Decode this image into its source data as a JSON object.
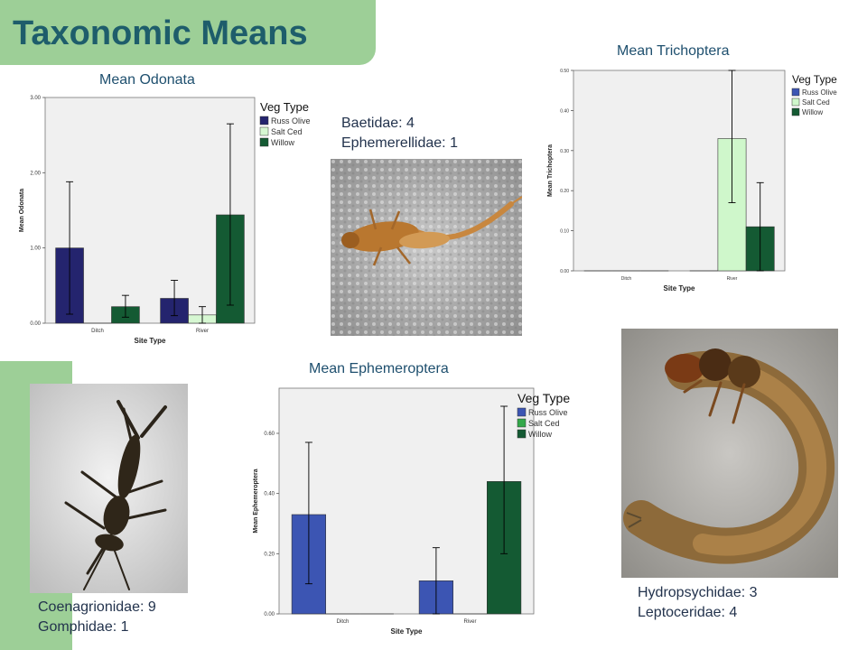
{
  "slide": {
    "title": "Taxonomic Means",
    "colors": {
      "accent_green": "#9dcf97",
      "title_color": "#1e5d6b"
    }
  },
  "captions": {
    "baetidae": "Baetidae: 4",
    "ephemerellidae": "Ephemerellidae: 1",
    "coenagrionidae": "Coenagrionidae: 9",
    "gomphidae": "Gomphidae: 1",
    "hydropsychidae": "Hydropsychidae: 3",
    "leptoceridae": "Leptoceridae: 4"
  },
  "photos": {
    "mayfly": "mayfly nymph photo",
    "damselfly": "damselfly nymph photo",
    "caddisfly": "caddisfly larva photo"
  },
  "chart_data": [
    {
      "type": "bar",
      "title": "Mean Odonata",
      "xlabel": "Site Type",
      "ylabel": "Mean Odonata",
      "categories": [
        "Ditch",
        "River"
      ],
      "ylim": [
        0,
        3
      ],
      "yticks": [
        "0.00",
        "1.00",
        "2.00",
        "3.00"
      ],
      "legend_title": "Veg Type",
      "legend_placement": "right",
      "grid": false,
      "series": [
        {
          "name": "Russ Olive",
          "color": "#24246e",
          "values": [
            1.0,
            0.33
          ],
          "err_low": [
            0.12,
            0.1
          ],
          "err_high": [
            1.88,
            0.57
          ]
        },
        {
          "name": "Salt Ced",
          "color": "#d6f7d2",
          "values": [
            0,
            0.11
          ],
          "err_low": [
            null,
            0.0
          ],
          "err_high": [
            null,
            0.22
          ]
        },
        {
          "name": "Willow",
          "color": "#145a33",
          "values": [
            0.22,
            1.44
          ],
          "err_low": [
            0.08,
            0.24
          ],
          "err_high": [
            0.37,
            2.65
          ]
        }
      ]
    },
    {
      "type": "bar",
      "title": "Mean Trichoptera",
      "xlabel": "Site Type",
      "ylabel": "Mean Trichoptera",
      "categories": [
        "Ditch",
        "River"
      ],
      "ylim": [
        0,
        0.5
      ],
      "yticks": [
        "0.00",
        "0.10",
        "0.20",
        "0.30",
        "0.40",
        "0.50"
      ],
      "legend_title": "Veg Type",
      "legend_placement": "right",
      "grid": false,
      "series": [
        {
          "name": "Russ Olive",
          "color": "#3c55b3",
          "values": [
            0,
            0
          ],
          "err_low": [
            null,
            null
          ],
          "err_high": [
            null,
            null
          ]
        },
        {
          "name": "Salt Ced",
          "color": "#cff7cb",
          "values": [
            0,
            0.33
          ],
          "err_low": [
            null,
            0.17
          ],
          "err_high": [
            null,
            0.5
          ]
        },
        {
          "name": "Willow",
          "color": "#145a33",
          "values": [
            0,
            0.11
          ],
          "err_low": [
            null,
            0.0
          ],
          "err_high": [
            null,
            0.22
          ]
        }
      ]
    },
    {
      "type": "bar",
      "title": "Mean Ephemeroptera",
      "xlabel": "Site Type",
      "ylabel": "Mean Ephemeroptera",
      "categories": [
        "Ditch",
        "River"
      ],
      "ylim": [
        0,
        0.75
      ],
      "yticks": [
        "0.00",
        "0.20",
        "0.40",
        "0.60"
      ],
      "legend_title": "Veg Type",
      "legend_placement": "right",
      "grid": false,
      "series": [
        {
          "name": "Russ Olive",
          "color": "#3c55b3",
          "values": [
            0.33,
            0.11
          ],
          "err_low": [
            0.1,
            0.0
          ],
          "err_high": [
            0.57,
            0.22
          ]
        },
        {
          "name": "Salt Ced",
          "color": "#33a84a",
          "values": [
            0,
            0
          ],
          "err_low": [
            null,
            null
          ],
          "err_high": [
            null,
            null
          ]
        },
        {
          "name": "Willow",
          "color": "#145a33",
          "values": [
            0,
            0.44
          ],
          "err_low": [
            null,
            0.2
          ],
          "err_high": [
            null,
            0.69
          ]
        }
      ]
    }
  ]
}
